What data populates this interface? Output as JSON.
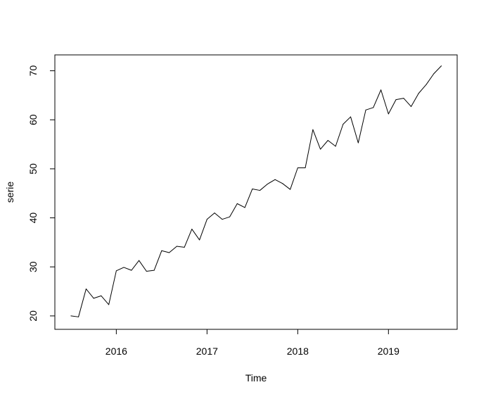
{
  "chart_data": {
    "type": "line",
    "title": "",
    "xlabel": "Time",
    "ylabel": "serie",
    "xlim": [
      2015.5,
      2019.58
    ],
    "ylim": [
      19.5,
      71
    ],
    "x_ticks": [
      2016,
      2017,
      2018,
      2019
    ],
    "x_tick_labels": [
      "2016",
      "2017",
      "2018",
      "2019"
    ],
    "y_ticks": [
      20,
      30,
      40,
      50,
      60,
      70
    ],
    "y_tick_labels": [
      "20",
      "30",
      "40",
      "50",
      "60",
      "70"
    ],
    "grid": false,
    "frequency": 12,
    "start": [
      2015,
      7
    ],
    "x": [
      2015.5,
      2015.583,
      2015.667,
      2015.75,
      2015.833,
      2015.917,
      2016.0,
      2016.083,
      2016.167,
      2016.25,
      2016.333,
      2016.417,
      2016.5,
      2016.583,
      2016.667,
      2016.75,
      2016.833,
      2016.917,
      2017.0,
      2017.083,
      2017.167,
      2017.25,
      2017.333,
      2017.417,
      2017.5,
      2017.583,
      2017.667,
      2017.75,
      2017.833,
      2017.917,
      2018.0,
      2018.083,
      2018.167,
      2018.25,
      2018.333,
      2018.417,
      2018.5,
      2018.583,
      2018.667,
      2018.75,
      2018.833,
      2018.917,
      2019.0,
      2019.083,
      2019.167,
      2019.25,
      2019.333,
      2019.417,
      2019.5,
      2019.583
    ],
    "series": [
      {
        "values": [
          20.0,
          19.8,
          25.5,
          23.6,
          24.1,
          22.3,
          29.2,
          29.9,
          29.3,
          31.3,
          29.1,
          29.3,
          33.3,
          32.9,
          34.2,
          34.0,
          37.7,
          35.5,
          39.7,
          41.0,
          39.7,
          40.2,
          42.9,
          42.1,
          45.9,
          45.6,
          46.9,
          47.8,
          47.0,
          45.8,
          50.2,
          50.2,
          58.0,
          54.0,
          55.8,
          54.6,
          59.1,
          60.6,
          55.3,
          62.0,
          62.5,
          66.1,
          61.2,
          64.1,
          64.4,
          62.7,
          65.4,
          67.2,
          69.4,
          71.0
        ]
      }
    ]
  }
}
